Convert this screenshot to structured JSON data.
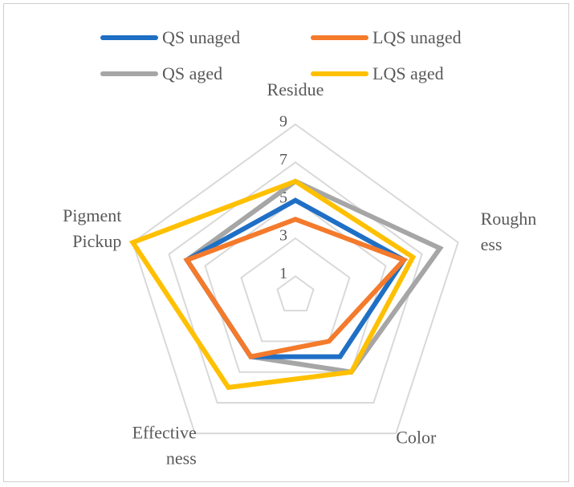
{
  "chart_data": {
    "type": "radar",
    "axes": [
      "Residue",
      "Roughness",
      "Color",
      "Effectiveness",
      "Pigment Pickup"
    ],
    "axis_label_lines": [
      [
        "Residue"
      ],
      [
        "Roughn",
        "ess"
      ],
      [
        "Color"
      ],
      [
        "Effective",
        "ness"
      ],
      [
        "Pigment",
        "Pickup"
      ]
    ],
    "rmin": 0,
    "rmax": 9,
    "ticks": [
      1,
      3,
      5,
      7,
      9
    ],
    "grid_levels": [
      1,
      3,
      5,
      7,
      9
    ],
    "legend_position": "top",
    "series": [
      {
        "name": "QS unaged",
        "color": "#1f6fc5",
        "values": [
          5,
          6,
          4,
          4,
          6
        ]
      },
      {
        "name": "LQS unaged",
        "color": "#f47a2c",
        "values": [
          4,
          6,
          3,
          4,
          6
        ]
      },
      {
        "name": "QS aged",
        "color": "#a6a6a6",
        "values": [
          6,
          8,
          5,
          4,
          6
        ]
      },
      {
        "name": "LQS aged",
        "color": "#ffc000",
        "values": [
          6,
          6.5,
          5,
          6,
          9
        ]
      }
    ],
    "draw_order": [
      2,
      3,
      0,
      1
    ]
  }
}
